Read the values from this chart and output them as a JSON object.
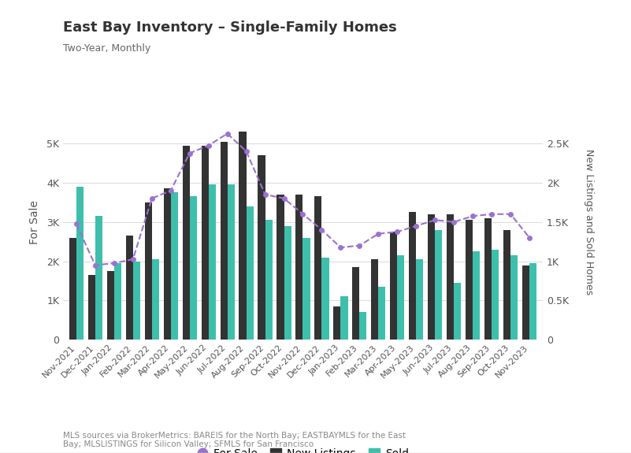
{
  "title": "East Bay Inventory – Single-Family Homes",
  "subtitle": "Two-Year, Monthly",
  "footnote": "MLS sources via BrokerMetrics: BAREIS for the North Bay; EASTBAYMLS for the East\nBay; MLSLISTINGS for Silicon Valley; SFMLS for San Francisco",
  "categories": [
    "Nov-2021",
    "Dec-2021",
    "Jan-2022",
    "Feb-2022",
    "Mar-2022",
    "Apr-2022",
    "May-2022",
    "Jun-2022",
    "Jul-2022",
    "Aug-2022",
    "Sep-2022",
    "Oct-2022",
    "Nov-2022",
    "Dec-2022",
    "Jan-2023",
    "Feb-2023",
    "Mar-2023",
    "Apr-2023",
    "May-2023",
    "Jun-2023",
    "Jul-2023",
    "Aug-2023",
    "Sep-2023",
    "Oct-2023",
    "Nov-2023"
  ],
  "for_sale": [
    2950,
    1900,
    1950,
    2050,
    3600,
    3800,
    4750,
    4950,
    5250,
    4800,
    3700,
    3600,
    3200,
    2800,
    2350,
    2400,
    2700,
    2750,
    2900,
    3050,
    3000,
    3150,
    3200,
    3200,
    2600
  ],
  "new_listings": [
    2600,
    1650,
    1750,
    2650,
    3500,
    3850,
    4950,
    4950,
    5050,
    5300,
    4700,
    3700,
    3700,
    3650,
    850,
    1850,
    2050,
    2750,
    3250,
    3200,
    3200,
    3050,
    3100,
    2800,
    1900
  ],
  "sold": [
    3900,
    3150,
    1950,
    2000,
    2050,
    3750,
    3650,
    3950,
    3950,
    3400,
    3050,
    2900,
    2600,
    2100,
    1100,
    700,
    1350,
    2150,
    2050,
    2800,
    1450,
    2250,
    2300,
    2150,
    1950
  ],
  "for_sale_color": "#9b72cf",
  "new_listings_color": "#333333",
  "sold_color": "#3dbfac",
  "background_color": "#ffffff",
  "grid_color": "#dddddd",
  "left_ylim": [
    0,
    6000
  ],
  "right_ylim": [
    0,
    3000
  ],
  "left_yticks": [
    0,
    1000,
    2000,
    3000,
    4000,
    5000
  ],
  "right_yticks": [
    0,
    500,
    1000,
    1500,
    2000,
    2500
  ],
  "left_yticklabels": [
    "0",
    "1K",
    "2K",
    "3K",
    "4K",
    "5K"
  ],
  "right_yticklabels": [
    "0",
    "0.5K",
    "1K",
    "1.5K",
    "2K",
    "2.5K"
  ],
  "ylabel_left": "For Sale",
  "ylabel_right": "New Listings and Sold Homes"
}
